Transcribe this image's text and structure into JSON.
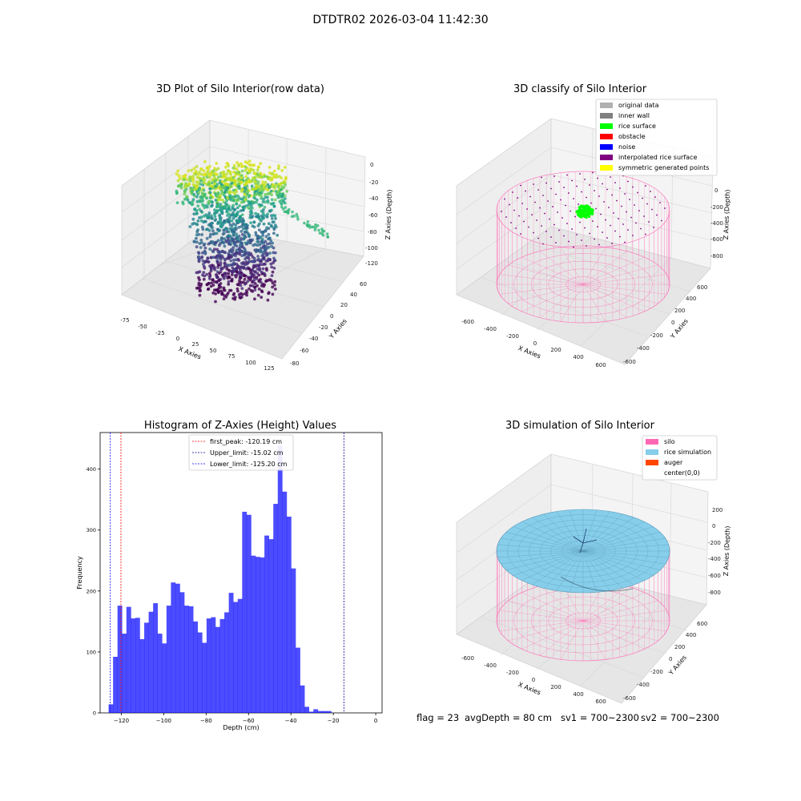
{
  "figure": {
    "suptitle": "DTDTR02 2026-03-04 11:42:30"
  },
  "panels": {
    "raw3d": {
      "title": "3D Plot of Silo Interior(row data)",
      "xlabel": "X Axies",
      "ylabel": "Y Axies",
      "zlabel": "Z Axies (Depth)",
      "xticks": [
        "-75",
        "-50",
        "-25",
        "0",
        "25",
        "50",
        "75",
        "100",
        "125"
      ],
      "yticks": [
        "-80",
        "-60",
        "-40",
        "-20",
        "0",
        "20",
        "40",
        "60"
      ],
      "zticks": [
        "0",
        "-20",
        "-40",
        "-60",
        "-80",
        "-100",
        "-120"
      ]
    },
    "classify3d": {
      "title": "3D classify of Silo Interior",
      "xlabel": "X Axies",
      "ylabel": "Y Axies",
      "zlabel": "Z Axies (Depth)",
      "xticks": [
        "-600",
        "-400",
        "-200",
        "0",
        "200",
        "400",
        "600"
      ],
      "yticks": [
        "-600",
        "-400",
        "-200",
        "0",
        "200",
        "400",
        "600"
      ],
      "zticks": [
        "0",
        "-200",
        "-400",
        "-600",
        "-800"
      ],
      "legend": [
        {
          "label": "original data",
          "color": "#b0b0b0"
        },
        {
          "label": "inner wall",
          "color": "#808080"
        },
        {
          "label": "rice surface",
          "color": "#00ff00"
        },
        {
          "label": "obstacle",
          "color": "#ff0000"
        },
        {
          "label": "noise",
          "color": "#0000ff"
        },
        {
          "label": "interpolated rice surface",
          "color": "#800080"
        },
        {
          "label": "symmetric generated points",
          "color": "#ffff00"
        }
      ]
    },
    "sim3d": {
      "title": "3D simulation of Silo Interior",
      "xlabel": "X Axies",
      "ylabel": "Y Axies",
      "zlabel": "Z Axies (Depth)",
      "xticks": [
        "-600",
        "-400",
        "-200",
        "0",
        "200",
        "400",
        "600"
      ],
      "yticks": [
        "-600",
        "-400",
        "-200",
        "0",
        "200",
        "400",
        "600"
      ],
      "zticks": [
        "200",
        "0",
        "-200",
        "-400",
        "-600",
        "-800"
      ],
      "legend": [
        {
          "label": "silo",
          "color": "#ff69b4"
        },
        {
          "label": "rice simulation",
          "color": "#87ceeb"
        },
        {
          "label": "auger",
          "color": "#ff4500"
        },
        {
          "label": "center(0,0)",
          "color": "#ffffff"
        }
      ]
    }
  },
  "footer": {
    "flag": "flag = 23",
    "avg_depth": "avgDepth = 80 cm",
    "sv1": "sv1 = 700~2300",
    "sv2": "sv2 = 700~2300"
  },
  "chart_data": {
    "type": "bar",
    "title": "Histogram of Z-Axies (Height) Values",
    "xlabel": "Depth (cm)",
    "ylabel": "Frequency",
    "xlim": [
      -130,
      3
    ],
    "ylim": [
      0,
      460
    ],
    "xticks": [
      -120,
      -100,
      -80,
      -60,
      -40,
      -20,
      0
    ],
    "yticks": [
      0,
      100,
      200,
      300,
      400
    ],
    "bar_color": "#0000ff",
    "bins": [
      [
        -126.0,
        14
      ],
      [
        -123.9,
        92
      ],
      [
        -121.8,
        176
      ],
      [
        -119.7,
        130
      ],
      [
        -117.6,
        174
      ],
      [
        -115.5,
        155
      ],
      [
        -113.4,
        156
      ],
      [
        -111.3,
        121
      ],
      [
        -109.2,
        148
      ],
      [
        -107.1,
        166
      ],
      [
        -105.0,
        180
      ],
      [
        -102.9,
        130
      ],
      [
        -100.8,
        114
      ],
      [
        -98.7,
        176
      ],
      [
        -96.6,
        214
      ],
      [
        -94.5,
        212
      ],
      [
        -92.4,
        198
      ],
      [
        -90.3,
        176
      ],
      [
        -88.2,
        175
      ],
      [
        -86.1,
        150
      ],
      [
        -84.0,
        132
      ],
      [
        -81.9,
        115
      ],
      [
        -79.8,
        155
      ],
      [
        -77.7,
        157
      ],
      [
        -75.6,
        141
      ],
      [
        -73.5,
        154
      ],
      [
        -71.4,
        165
      ],
      [
        -69.3,
        197
      ],
      [
        -67.2,
        182
      ],
      [
        -65.1,
        187
      ],
      [
        -63.0,
        330
      ],
      [
        -60.9,
        325
      ],
      [
        -58.8,
        258
      ],
      [
        -56.7,
        256
      ],
      [
        -54.6,
        255
      ],
      [
        -52.5,
        291
      ],
      [
        -50.4,
        285
      ],
      [
        -48.3,
        343
      ],
      [
        -46.2,
        438
      ],
      [
        -44.1,
        363
      ],
      [
        -42.0,
        322
      ],
      [
        -39.9,
        237
      ],
      [
        -37.8,
        107
      ],
      [
        -35.7,
        45
      ],
      [
        -33.6,
        10
      ],
      [
        -31.5,
        2
      ],
      [
        -29.4,
        6
      ],
      [
        -27.3,
        3
      ],
      [
        -25.2,
        3
      ],
      [
        -23.1,
        3
      ]
    ],
    "vlines": [
      {
        "label": "first_peak: -120.19 cm",
        "x": -120.19,
        "color": "#ff0000"
      },
      {
        "label": "Upper_limit: -15.02 cm",
        "x": -15.02,
        "color": "#00008b"
      },
      {
        "label": "Lower_limit: -125.20 cm",
        "x": -125.2,
        "color": "#0000ff"
      }
    ]
  }
}
